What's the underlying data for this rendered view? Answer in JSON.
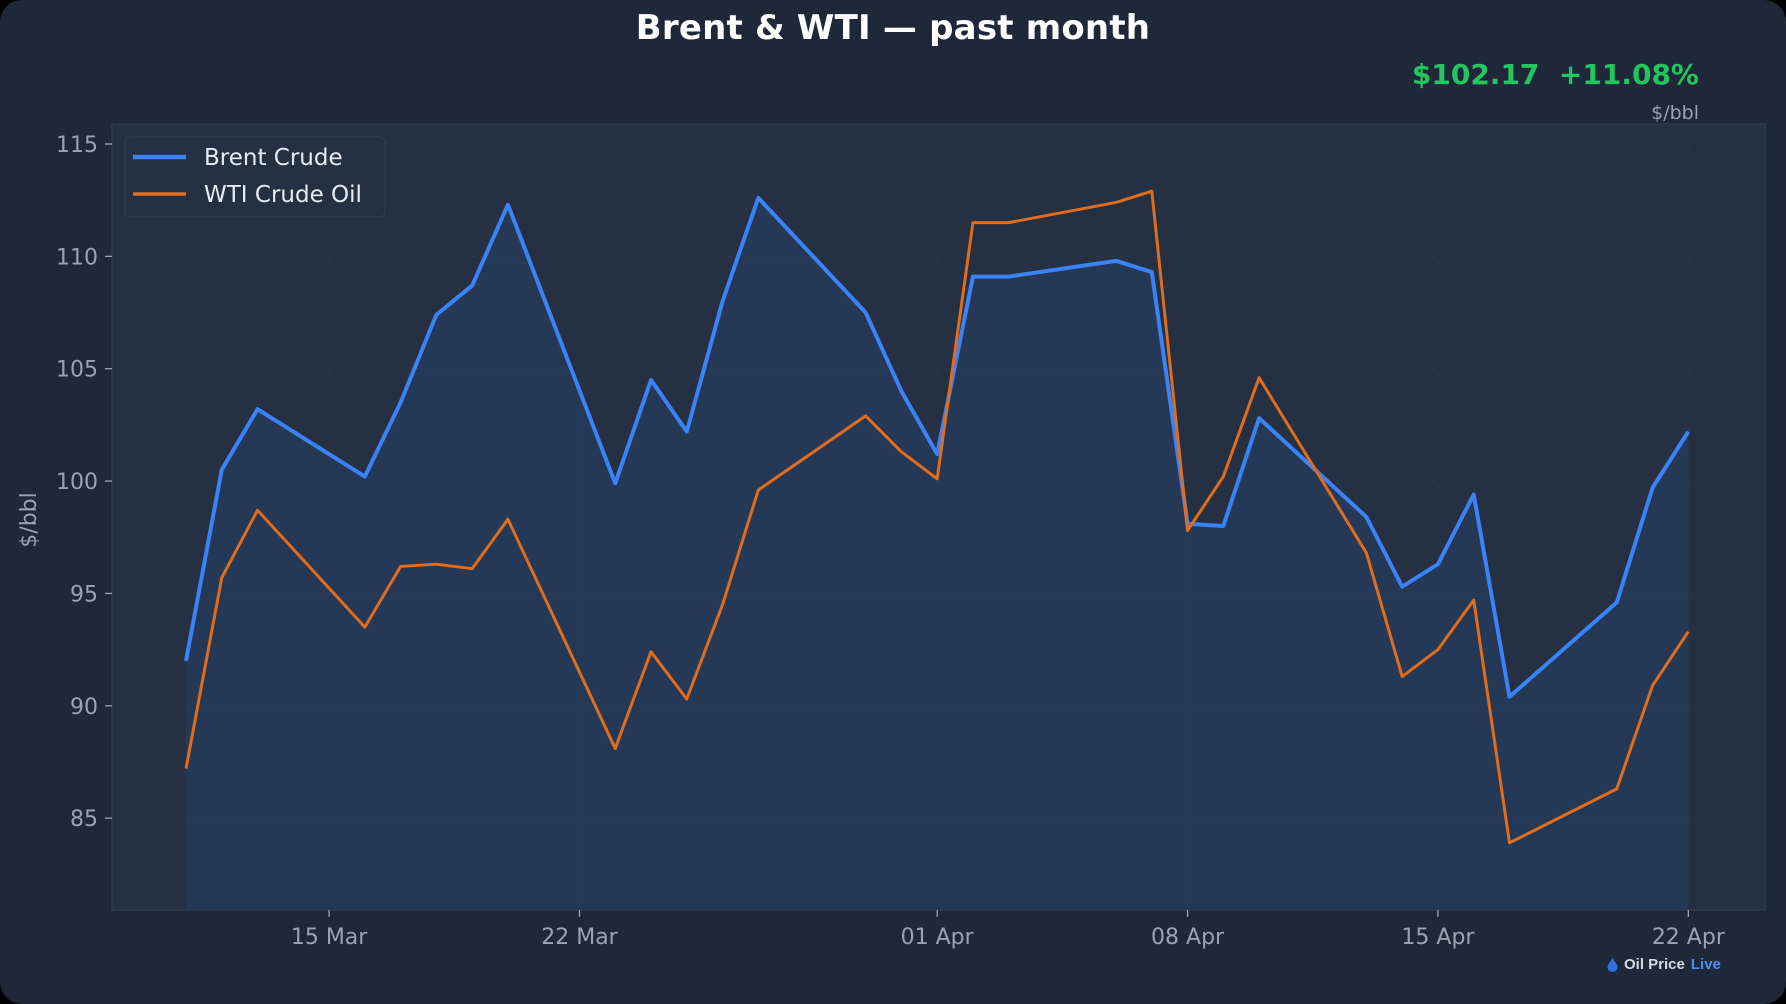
{
  "header": {
    "title": "Brent & WTI — past month",
    "price": "$102.17",
    "change": "+11.08%",
    "unit": "$/bbl"
  },
  "brand": {
    "name": "Oil Price",
    "suffix": "Live",
    "icon": "oil-drop-icon"
  },
  "colors": {
    "background": "#1e2839",
    "plot_bg": "#253042",
    "brent": "#3b82f6",
    "wti": "#e06c1e",
    "fill": "#263a58",
    "positive": "#22c55e",
    "axis_text": "#9aa3b2"
  },
  "chart_data": {
    "type": "line",
    "title": "Brent & WTI — past month",
    "xlabel": "",
    "ylabel": "$/bbl",
    "ylim": [
      81,
      116
    ],
    "yticks": [
      85,
      90,
      95,
      100,
      105,
      110,
      115
    ],
    "xticks": [
      {
        "label": "15 Mar",
        "day": 4
      },
      {
        "label": "22 Mar",
        "day": 11
      },
      {
        "label": "01 Apr",
        "day": 21
      },
      {
        "label": "08 Apr",
        "day": 28
      },
      {
        "label": "15 Apr",
        "day": 35
      },
      {
        "label": "22 Apr",
        "day": 42
      }
    ],
    "grid": true,
    "legend_position": "upper left",
    "x": [
      "11 Mar",
      "12 Mar",
      "13 Mar",
      "16 Mar",
      "17 Mar",
      "18 Mar",
      "19 Mar",
      "20 Mar",
      "23 Mar",
      "24 Mar",
      "25 Mar",
      "26 Mar",
      "27 Mar",
      "30 Mar",
      "31 Mar",
      "01 Apr",
      "02 Apr",
      "03 Apr",
      "06 Apr",
      "07 Apr",
      "08 Apr",
      "09 Apr",
      "10 Apr",
      "13 Apr",
      "14 Apr",
      "15 Apr",
      "16 Apr",
      "17 Apr",
      "20 Apr",
      "21 Apr",
      "22 Apr"
    ],
    "x_day": [
      0,
      1,
      2,
      5,
      6,
      7,
      8,
      9,
      12,
      13,
      14,
      15,
      16,
      19,
      20,
      21,
      22,
      23,
      26,
      27,
      28,
      29,
      30,
      33,
      34,
      35,
      36,
      37,
      40,
      41,
      42
    ],
    "series": [
      {
        "name": "Brent Crude",
        "color": "#3b82f6",
        "fill": true,
        "values": [
          92.0,
          100.5,
          103.2,
          100.2,
          103.5,
          107.4,
          108.7,
          112.3,
          99.9,
          104.5,
          102.2,
          108.0,
          112.6,
          107.5,
          104.0,
          101.2,
          109.1,
          109.1,
          109.8,
          109.3,
          98.1,
          98.0,
          102.8,
          98.4,
          95.3,
          96.3,
          99.4,
          90.4,
          94.6,
          99.7,
          102.2
        ]
      },
      {
        "name": "WTI Crude Oil",
        "color": "#e06c1e",
        "fill": false,
        "values": [
          87.2,
          95.7,
          98.7,
          93.5,
          96.2,
          96.3,
          96.1,
          98.3,
          88.1,
          92.4,
          90.3,
          94.5,
          99.6,
          102.9,
          101.3,
          100.1,
          111.5,
          111.5,
          112.4,
          112.9,
          97.8,
          100.2,
          104.6,
          96.8,
          91.3,
          92.5,
          94.7,
          83.9,
          86.3,
          90.9,
          93.3
        ]
      }
    ]
  }
}
